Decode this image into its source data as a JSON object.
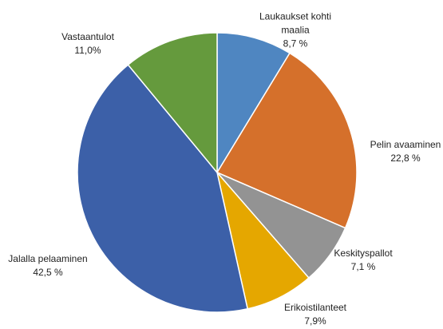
{
  "chart_data": {
    "type": "pie",
    "categories": [
      "Laukaukset kohti maalia",
      "Pelin avaaminen",
      "Keskityspallot",
      "Erikoistilanteet",
      "Jalalla pelaaminen",
      "Vastaantulot"
    ],
    "values": [
      8.7,
      22.8,
      7.1,
      7.9,
      42.5,
      11.0
    ],
    "value_labels": [
      "8,7 %",
      "22,8 %",
      "7,1 %",
      "7,9%",
      "42,5 %",
      "11,0%"
    ],
    "colors": [
      "#4f86c1",
      "#d5702b",
      "#939393",
      "#e5a700",
      "#3c60a8",
      "#659a3d"
    ]
  }
}
